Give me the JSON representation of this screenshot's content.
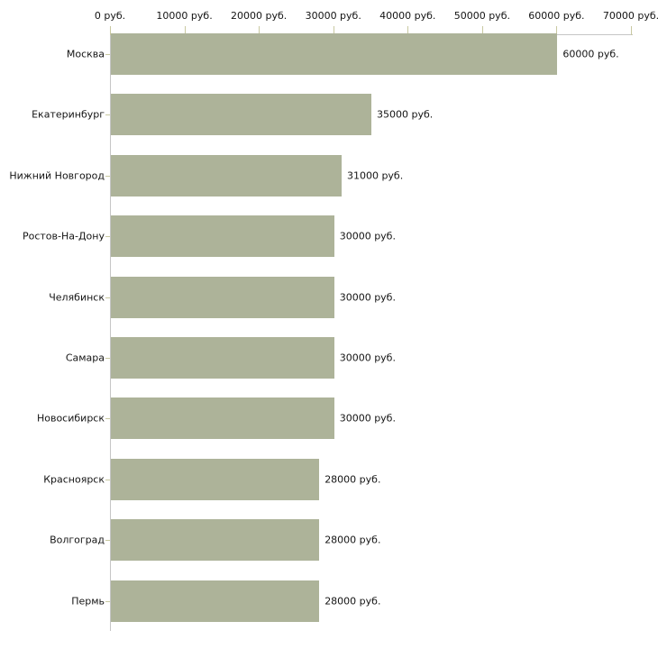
{
  "chart_data": {
    "type": "bar",
    "orientation": "horizontal",
    "categories": [
      "Москва",
      "Екатеринбург",
      "Нижний Новгород",
      "Ростов-На-Дону",
      "Челябинск",
      "Самара",
      "Новосибирск",
      "Красноярск",
      "Волгоград",
      "Пермь"
    ],
    "values": [
      60000,
      35000,
      31000,
      30000,
      30000,
      30000,
      30000,
      28000,
      28000,
      28000
    ],
    "value_labels": [
      "60000 руб.",
      "35000 руб.",
      "31000 руб.",
      "30000 руб.",
      "30000 руб.",
      "30000 руб.",
      "30000 руб.",
      "28000 руб.",
      "28000 руб.",
      "28000 руб."
    ],
    "x_tick_labels": [
      "0 руб.",
      "10000 руб.",
      "20000 руб.",
      "30000 руб.",
      "40000 руб.",
      "50000 руб.",
      "60000 руб.",
      "70000 руб."
    ],
    "x_tick_values": [
      0,
      10000,
      20000,
      30000,
      40000,
      50000,
      60000,
      70000
    ],
    "xlim": [
      0,
      70000
    ],
    "unit": "руб.",
    "grid": "off",
    "legend": "none",
    "xlabel": "",
    "ylabel": "",
    "colors": {
      "bar": "#adb399",
      "axis": "#c6c6c6",
      "tick": "#c9c9a1",
      "text": "#141414",
      "background": "#ffffff"
    }
  }
}
